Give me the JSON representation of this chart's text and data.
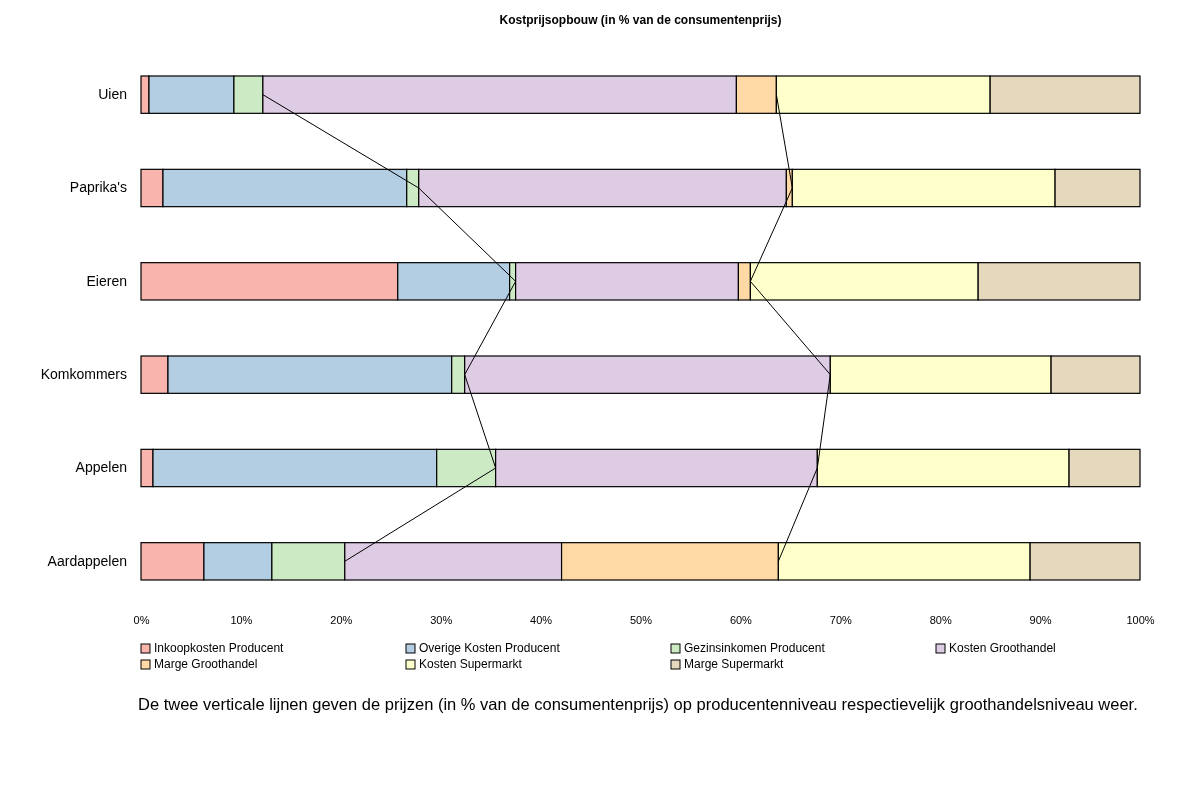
{
  "chart_data": {
    "type": "bar",
    "orientation": "horizontal",
    "stacked": true,
    "title": "Kostprijsopbouw (in % van de consumentenprijs)",
    "categories": [
      "Uien",
      "Paprika's",
      "Eieren",
      "Komkommers",
      "Appelen",
      "Aardappelen"
    ],
    "series": [
      {
        "name": "Inkoopkosten Producent",
        "color": "#f9b4ae",
        "values": [
          0.8,
          2.2,
          25.7,
          2.7,
          1.2,
          6.3
        ]
      },
      {
        "name": "Overige Kosten Producent",
        "color": "#b3cde3",
        "values": [
          8.5,
          24.4,
          11.2,
          28.4,
          28.4,
          6.8
        ]
      },
      {
        "name": "Gezinsinkomen Producent",
        "color": "#ccebc5",
        "values": [
          2.9,
          1.2,
          0.6,
          1.3,
          5.9,
          7.3
        ]
      },
      {
        "name": "Kosten Groothandel",
        "color": "#decbe4",
        "values": [
          47.4,
          36.8,
          22.3,
          36.6,
          32.2,
          21.7
        ]
      },
      {
        "name": "Marge Groothandel",
        "color": "#fed9a6",
        "values": [
          4.0,
          0.6,
          1.2,
          0,
          0,
          21.7
        ]
      },
      {
        "name": "Kosten Supermarkt",
        "color": "#ffffcc",
        "values": [
          21.4,
          26.3,
          22.8,
          22.1,
          25.2,
          25.2
        ]
      },
      {
        "name": "Marge Supermarkt",
        "color": "#e5d8bd",
        "values": [
          15.0,
          8.5,
          16.2,
          8.9,
          7.1,
          11.0
        ]
      },
      {
        "type": "line",
        "color": "#000000",
        "values": [
          12.2,
          27.8,
          37.5,
          32.4,
          35.5,
          20.4
        ]
      },
      {
        "type": "line",
        "color": "#000000",
        "values": [
          63.6,
          65.2,
          61.0,
          69.0,
          67.7,
          63.8
        ]
      }
    ],
    "xlim": [
      0,
      100
    ],
    "xticks": [
      {
        "value": 0,
        "label": "0%"
      },
      {
        "value": 10,
        "label": "10%"
      },
      {
        "value": 20,
        "label": "20%"
      },
      {
        "value": 30,
        "label": "30%"
      },
      {
        "value": 40,
        "label": "40%"
      },
      {
        "value": 50,
        "label": "50%"
      },
      {
        "value": 60,
        "label": "60%"
      },
      {
        "value": 70,
        "label": "70%"
      },
      {
        "value": 80,
        "label": "80%"
      },
      {
        "value": 90,
        "label": "90%"
      },
      {
        "value": 100,
        "label": "100%"
      }
    ],
    "legend": "bottom",
    "annotations": [
      "De twee verticale lijnen geven de prijzen (in % van de consumentenprijs) op producentenniveau respectievelijk groothandelsniveau weer."
    ]
  }
}
